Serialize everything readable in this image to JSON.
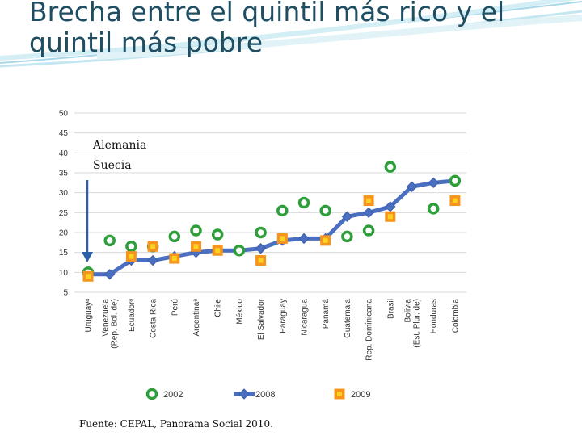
{
  "slide": {
    "title": "Brecha entre el quintil más rico y el quintil más pobre",
    "annotations": [
      "Alemania",
      "Suecia"
    ],
    "source": "Fuente: CEPAL, Panorama Social 2010."
  },
  "colors": {
    "title": "#1f4e63",
    "s2002": "#2e9e3a",
    "s2008": "#4a6fc0",
    "s2009_fill": "#f7941d",
    "s2009_inner": "#fbd21f",
    "grid": "#d9d9d9",
    "arrow": "#2b5fa8"
  },
  "chart_data": {
    "type": "line",
    "categories": [
      "Uruguayᵃ",
      "Venezuela (Rep. Bol. de)",
      "Ecuadorᵃ",
      "Costa Rica",
      "Perú",
      "Argentinaᵃ",
      "Chile",
      "México",
      "El Salvador",
      "Paraguay",
      "Nicaragua",
      "Panamá",
      "Guatemala",
      "Rep. Dominicana",
      "Brasil",
      "Bolivia (Est. Plur. de)",
      "Honduras",
      "Colombia"
    ],
    "y_ticks": [
      5,
      10,
      15,
      20,
      25,
      30,
      35,
      40,
      45,
      50
    ],
    "ylim": [
      5,
      50
    ],
    "grid": true,
    "legend_position": "bottom",
    "series": [
      {
        "name": "2002",
        "marker": "circle",
        "connected": false,
        "values": [
          10,
          18,
          16.5,
          16.5,
          19,
          20.5,
          19.5,
          15.5,
          20,
          25.5,
          27.5,
          25.5,
          19,
          20.5,
          36.5,
          null,
          26,
          33
        ]
      },
      {
        "name": "2008",
        "marker": "diamond",
        "connected": true,
        "values": [
          9.5,
          9.5,
          13,
          13,
          14,
          15,
          15.5,
          15.5,
          16,
          18,
          18.5,
          18.5,
          24,
          25,
          26.5,
          31.5,
          32.5,
          33
        ]
      },
      {
        "name": "2009",
        "marker": "square",
        "connected": false,
        "values": [
          9,
          null,
          14,
          16.5,
          13.5,
          16.5,
          15.5,
          null,
          13,
          18.5,
          null,
          18,
          null,
          28,
          24,
          null,
          null,
          28
        ]
      }
    ]
  }
}
